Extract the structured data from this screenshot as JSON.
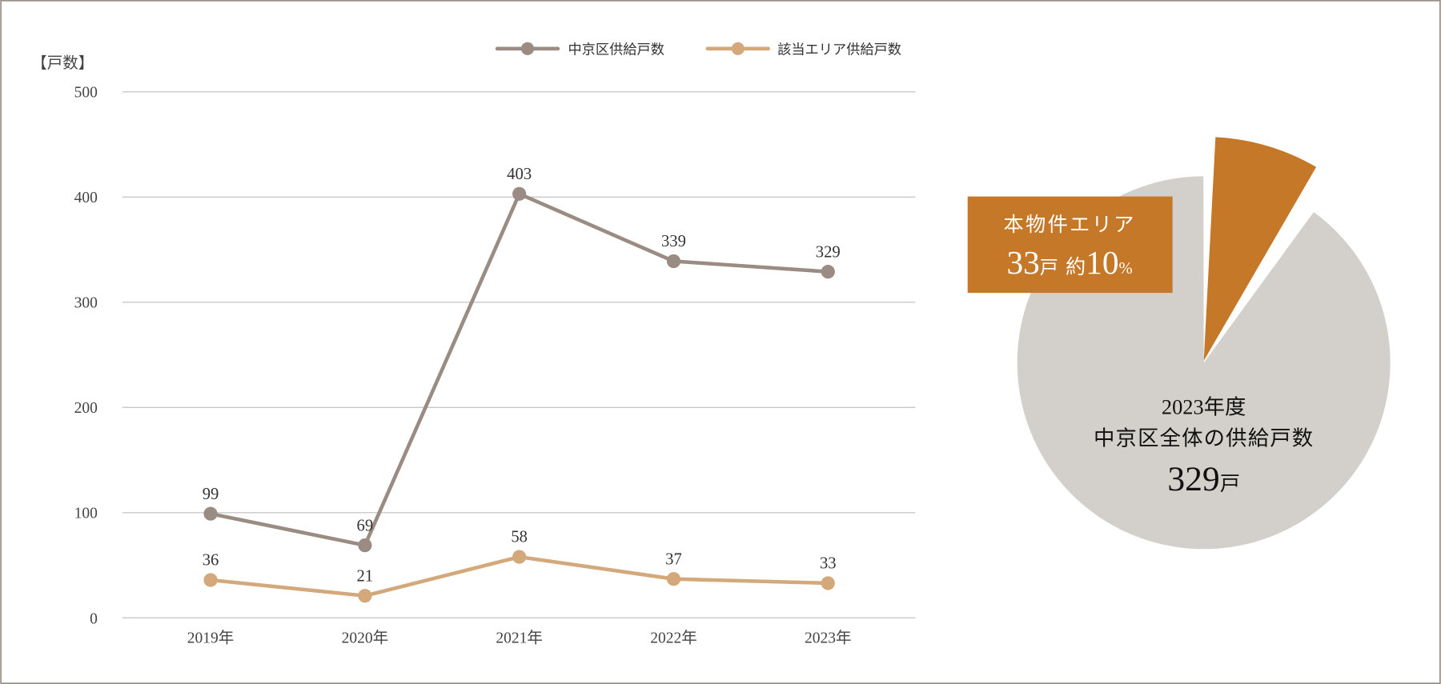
{
  "colors": {
    "frame": "#9a9085",
    "district": "#9a8c82",
    "area": "#d3a87a",
    "grid": "#c8c8c8",
    "pie_main": "#d3cfcb",
    "pie_highlight": "#c47828"
  },
  "chart_data": [
    {
      "type": "line",
      "ylabel": "【戸数】",
      "ylim": [
        0,
        500
      ],
      "yticks": [
        "0",
        "100",
        "200",
        "300",
        "400",
        "500"
      ],
      "grid": true,
      "legend_position": "top-right",
      "categories": [
        "2019年",
        "2020年",
        "2021年",
        "2022年",
        "2023年"
      ],
      "series": [
        {
          "name": "中京区供給戸数",
          "values": [
            99,
            69,
            403,
            339,
            329
          ],
          "labels": [
            "99",
            "69",
            "403",
            "339",
            "329"
          ]
        },
        {
          "name": "該当エリア供給戸数",
          "values": [
            36,
            21,
            58,
            37,
            33
          ],
          "labels": [
            "36",
            "21",
            "58",
            "37",
            "33"
          ]
        }
      ]
    },
    {
      "type": "pie",
      "slices": [
        {
          "name": "本物件エリア",
          "value": 33,
          "percent": 10,
          "exploded": true
        },
        {
          "name": "中京区全体",
          "value": 296
        }
      ],
      "highlight_label": {
        "title": "本物件エリア",
        "count": "33",
        "count_unit": "戸",
        "approx": "約",
        "percent": "10",
        "percent_unit": "%"
      },
      "center_label": {
        "line1": "2023年度",
        "line2": "中京区全体の供給戸数",
        "count": "329",
        "count_unit": "戸"
      }
    }
  ]
}
